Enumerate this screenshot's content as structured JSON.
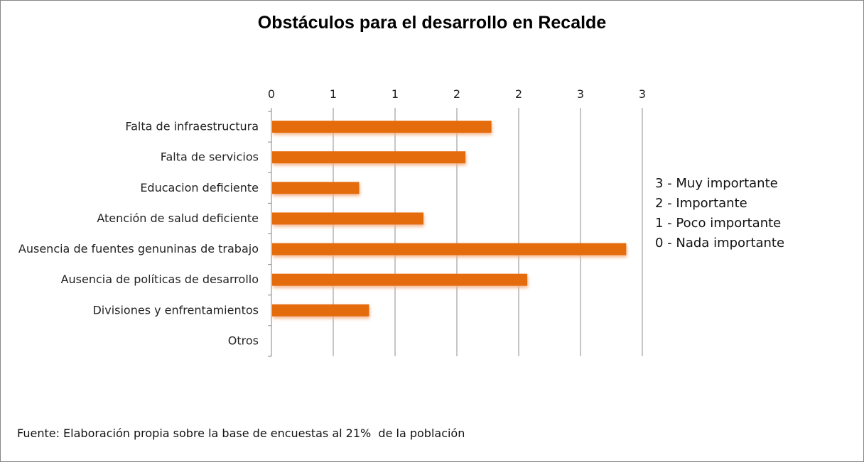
{
  "chart_data": {
    "type": "bar",
    "orientation": "horizontal",
    "title": "Obstáculos para el desarrollo en Recalde",
    "categories": [
      "Falta de infraestructura",
      "Falta de servicios",
      "Educacion deficiente",
      "Atención de salud deficiente",
      "Ausencia de fuentes genuninas de trabajo",
      "Ausencia de políticas de desarrollo",
      "Divisiones y enfrentamientos",
      "Otros"
    ],
    "values": [
      1.78,
      1.57,
      0.71,
      1.23,
      2.87,
      2.07,
      0.79,
      0
    ],
    "xlim": [
      0,
      3
    ],
    "x_ticks": [
      0,
      0.5,
      1,
      1.5,
      2,
      2.5,
      3
    ],
    "x_tick_labels": [
      "0",
      "1",
      "1",
      "2",
      "2",
      "3",
      "3"
    ],
    "x_axis_position": "top",
    "grid": true,
    "bar_color": "#E46C0A",
    "legend_position": "right",
    "legend_entries": [
      "3 - Muy importante",
      "2 - Importante",
      "1 - Poco importante",
      "0 - Nada importante"
    ],
    "source_note": "Fuente: Elaboración propia sobre la base de encuestas al 21%  de la población"
  }
}
